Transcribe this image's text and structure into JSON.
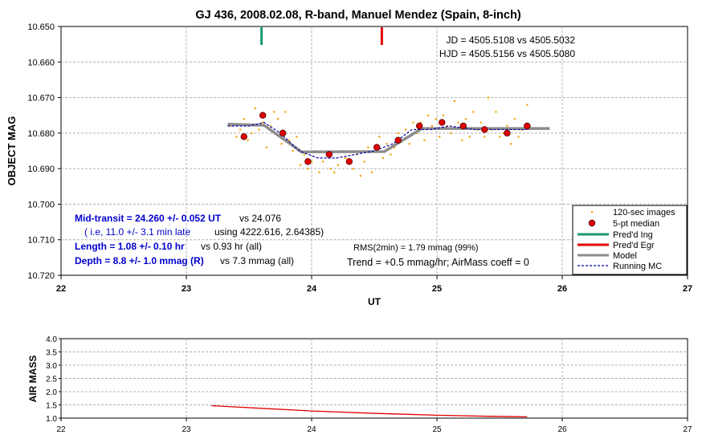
{
  "colors": {
    "points": "#f5a000",
    "median_fill": "#e00000",
    "ingress": "#1a9a6c",
    "egress": "#e00000",
    "model": "#8c8c8c",
    "running_mc": "#0000aa",
    "airmass_line": "#e00000",
    "blue_text": "#0000cc"
  },
  "chart_data": [
    {
      "type": "scatter",
      "title": "GJ 436, 2008.02.08, R-band, Manuel Mendez (Spain, 8-inch)",
      "xlabel": "UT",
      "ylabel": "OBJECT MAG",
      "xlim": [
        22,
        27
      ],
      "ylim": [
        10.72,
        10.65
      ],
      "y_inverted": true,
      "grid": true,
      "legend_position": "bottom-right",
      "x_ticks": [
        "22",
        "23",
        "24",
        "25",
        "26",
        "27"
      ],
      "y_ticks": [
        "10.650",
        "10.660",
        "10.670",
        "10.680",
        "10.690",
        "10.700",
        "10.710",
        "10.720"
      ],
      "legend": [
        "120-sec images",
        "5-pt median",
        "Pred'd Ing",
        "Pred'd Egr",
        "Model",
        "Running MC"
      ],
      "annotations": {
        "jd": "JD = 4505.5108 vs 4505.5032",
        "hjd": "HJD = 4505.5156 vs 4505.5080",
        "mid_transit_a": "Mid-transit = 24.260 +/- 0.052 UT",
        "mid_transit_b": "vs 24.076",
        "late_a": "( i.e, 11.0 +/- 3.1 min late",
        "late_b": "using 4222.616, 2.64385)",
        "length_a": "Length = 1.08 +/- 0.10 hr",
        "length_b": "vs 0.93 hr (all)",
        "depth_a": "Depth = 8.8 +/- 1.0 mmag (R)",
        "depth_b": "vs 7.3 mmag (all)",
        "rms": "RMS(2min) = 1.79 mmag (99%)",
        "trend": "Trend = +0.5 mmag/hr; AirMass coeff = 0"
      },
      "predicted_ingress_ut": 23.6,
      "predicted_egress_ut": 24.56,
      "series": [
        {
          "name": "120-sec images",
          "points": [
            [
              23.35,
              10.678
            ],
            [
              23.4,
              10.681
            ],
            [
              23.43,
              10.679
            ],
            [
              23.46,
              10.676
            ],
            [
              23.49,
              10.682
            ],
            [
              23.52,
              10.68
            ],
            [
              23.55,
              10.673
            ],
            [
              23.58,
              10.679
            ],
            [
              23.61,
              10.677
            ],
            [
              23.64,
              10.684
            ],
            [
              23.67,
              10.678
            ],
            [
              23.7,
              10.674
            ],
            [
              23.73,
              10.676
            ],
            [
              23.76,
              10.683
            ],
            [
              23.79,
              10.674
            ],
            [
              23.82,
              10.682
            ],
            [
              23.85,
              10.685
            ],
            [
              23.88,
              10.681
            ],
            [
              23.91,
              10.689
            ],
            [
              23.94,
              10.686
            ],
            [
              23.97,
              10.69
            ],
            [
              24.0,
              10.688
            ],
            [
              24.03,
              10.685
            ],
            [
              24.06,
              10.691
            ],
            [
              24.09,
              10.688
            ],
            [
              24.12,
              10.686
            ],
            [
              24.15,
              10.69
            ],
            [
              24.18,
              10.691
            ],
            [
              24.21,
              10.689
            ],
            [
              24.24,
              10.685
            ],
            [
              24.27,
              10.687
            ],
            [
              24.3,
              10.688
            ],
            [
              24.33,
              10.69
            ],
            [
              24.36,
              10.686
            ],
            [
              24.39,
              10.692
            ],
            [
              24.42,
              10.688
            ],
            [
              24.45,
              10.684
            ],
            [
              24.48,
              10.691
            ],
            [
              24.51,
              10.684
            ],
            [
              24.54,
              10.681
            ],
            [
              24.57,
              10.687
            ],
            [
              24.6,
              10.683
            ],
            [
              24.63,
              10.686
            ],
            [
              24.66,
              10.684
            ],
            [
              24.69,
              10.68
            ],
            [
              24.72,
              10.682
            ],
            [
              24.75,
              10.679
            ],
            [
              24.78,
              10.683
            ],
            [
              24.81,
              10.677
            ],
            [
              24.84,
              10.68
            ],
            [
              24.87,
              10.677
            ],
            [
              24.9,
              10.682
            ],
            [
              24.93,
              10.675
            ],
            [
              24.96,
              10.678
            ],
            [
              24.99,
              10.676
            ],
            [
              25.02,
              10.681
            ],
            [
              25.05,
              10.675
            ],
            [
              25.08,
              10.678
            ],
            [
              25.11,
              10.68
            ],
            [
              25.14,
              10.671
            ],
            [
              25.17,
              10.677
            ],
            [
              25.2,
              10.682
            ],
            [
              25.23,
              10.676
            ],
            [
              25.26,
              10.681
            ],
            [
              25.29,
              10.674
            ],
            [
              25.32,
              10.679
            ],
            [
              25.35,
              10.677
            ],
            [
              25.38,
              10.681
            ],
            [
              25.41,
              10.67
            ],
            [
              25.44,
              10.679
            ],
            [
              25.47,
              10.674
            ],
            [
              25.5,
              10.681
            ],
            [
              25.53,
              10.68
            ],
            [
              25.56,
              10.678
            ],
            [
              25.59,
              10.683
            ],
            [
              25.62,
              10.676
            ],
            [
              25.65,
              10.681
            ],
            [
              25.68,
              10.679
            ],
            [
              25.72,
              10.672
            ]
          ]
        },
        {
          "name": "5-pt median",
          "points": [
            [
              23.46,
              10.681
            ],
            [
              23.61,
              10.675
            ],
            [
              23.77,
              10.68
            ],
            [
              23.97,
              10.688
            ],
            [
              24.14,
              10.686
            ],
            [
              24.3,
              10.688
            ],
            [
              24.52,
              10.684
            ],
            [
              24.69,
              10.682
            ],
            [
              24.86,
              10.678
            ],
            [
              25.04,
              10.677
            ],
            [
              25.21,
              10.678
            ],
            [
              25.38,
              10.679
            ],
            [
              25.56,
              10.68
            ],
            [
              25.72,
              10.678
            ]
          ]
        },
        {
          "name": "Model",
          "points": [
            [
              23.33,
              10.6775
            ],
            [
              23.62,
              10.6778
            ],
            [
              23.92,
              10.6853
            ],
            [
              24.58,
              10.6852
            ],
            [
              24.88,
              10.6787
            ],
            [
              25.9,
              10.6787
            ]
          ]
        },
        {
          "name": "Running MC",
          "points": [
            [
              23.33,
              10.678
            ],
            [
              23.5,
              10.678
            ],
            [
              23.62,
              10.677
            ],
            [
              23.75,
              10.68
            ],
            [
              23.9,
              10.685
            ],
            [
              24.05,
              10.687
            ],
            [
              24.2,
              10.687
            ],
            [
              24.35,
              10.686
            ],
            [
              24.5,
              10.685
            ],
            [
              24.65,
              10.683
            ],
            [
              24.8,
              10.679
            ],
            [
              24.95,
              10.679
            ],
            [
              25.1,
              10.678
            ],
            [
              25.3,
              10.679
            ],
            [
              25.5,
              10.679
            ],
            [
              25.72,
              10.679
            ]
          ]
        }
      ]
    },
    {
      "type": "line",
      "ylabel": "AIR MASS",
      "xlim": [
        22,
        27
      ],
      "ylim": [
        1.0,
        4.0
      ],
      "grid": true,
      "x_ticks": [
        "22",
        "23",
        "24",
        "25",
        "26",
        "27"
      ],
      "y_ticks": [
        "1.0",
        "1.5",
        "2.0",
        "2.5",
        "3.0",
        "3.5",
        "4.0"
      ],
      "series": [
        {
          "name": "Air mass",
          "points": [
            [
              23.2,
              1.47
            ],
            [
              23.6,
              1.37
            ],
            [
              24.0,
              1.27
            ],
            [
              24.5,
              1.18
            ],
            [
              25.0,
              1.11
            ],
            [
              25.4,
              1.07
            ],
            [
              25.72,
              1.05
            ]
          ]
        }
      ]
    }
  ]
}
